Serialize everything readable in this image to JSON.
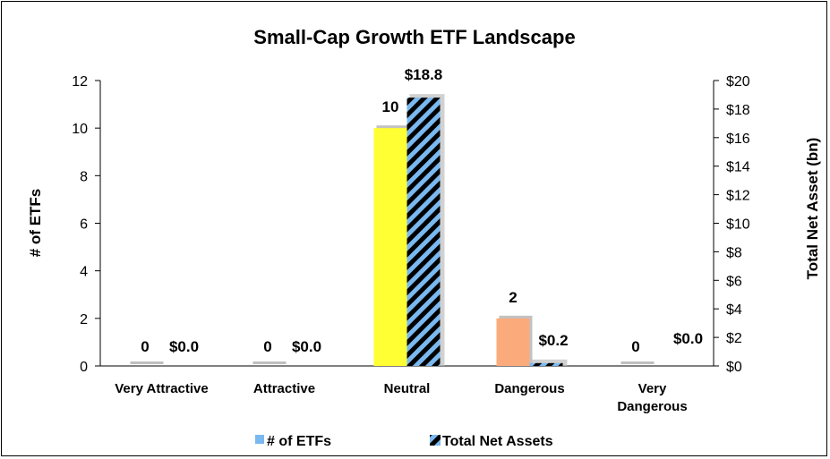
{
  "chart_data": {
    "type": "bar",
    "title": "Small-Cap Growth ETF Landscape",
    "ylabel": "# of ETFs",
    "y2label": "Total Net Asset (bn)",
    "categories": [
      [
        "Very Attractive"
      ],
      [
        "Attractive"
      ],
      [
        "Neutral"
      ],
      [
        "Dangerous"
      ],
      [
        "Very",
        "Dangerous"
      ]
    ],
    "ylim": [
      0,
      12
    ],
    "y2lim": [
      0,
      20
    ],
    "yticks": [
      "0",
      "2",
      "4",
      "6",
      "8",
      "10",
      "12"
    ],
    "y2ticks": [
      "$0",
      "$2",
      "$4",
      "$6",
      "$8",
      "$10",
      "$12",
      "$14",
      "$16",
      "$18",
      "$20"
    ],
    "series": [
      {
        "name": "# of ETFs",
        "axis": "left",
        "values": [
          0,
          0,
          10,
          2,
          0
        ],
        "labels": [
          "0",
          "0",
          "10",
          "2",
          "0"
        ],
        "colors": [
          "#bfbfbf",
          "#bfbfbf",
          "#ffff33",
          "#fbaa7b",
          "#bfbfbf"
        ],
        "legend_color": "#7ab8f0"
      },
      {
        "name": "Total Net Assets",
        "axis": "right",
        "values": [
          0.0,
          0.0,
          18.8,
          0.2,
          0.0
        ],
        "labels": [
          "$0.0",
          "$0.0",
          "$18.8",
          "$0.2",
          ""
        ],
        "extra_labels": [
          "",
          "",
          "",
          "",
          "$0.0"
        ],
        "stripe_colors": [
          "#000000",
          "#7ab8f0"
        ]
      }
    ],
    "legend_position": "bottom",
    "grid": false
  }
}
